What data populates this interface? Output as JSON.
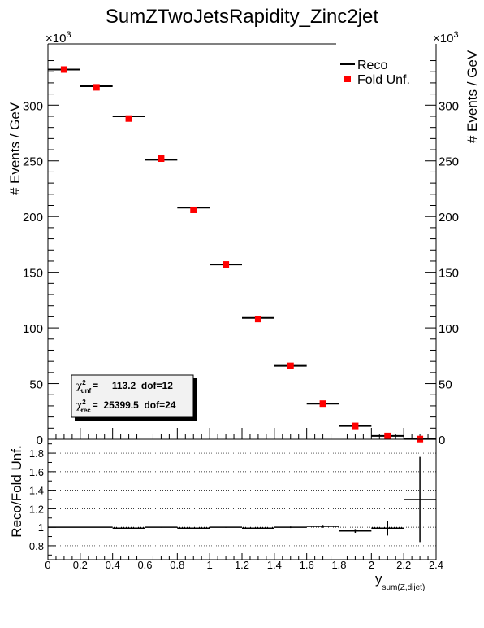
{
  "title": "SumZTwoJetsRapidity_Zinc2jet",
  "upper": {
    "ylabel": "# Events / GeV",
    "exponent_base": "×10",
    "exponent_power": "3",
    "ylim": [
      0,
      355
    ],
    "yticks": [
      0,
      50,
      100,
      150,
      200,
      250,
      300
    ],
    "ytick_labels": [
      "0",
      "50",
      "100",
      "150",
      "200",
      "250",
      "300"
    ]
  },
  "legend": {
    "entries": [
      {
        "label": "Reco",
        "marker": "line",
        "color": "#000000"
      },
      {
        "label": "Fold Unf.",
        "marker": "square",
        "color": "#ff0000"
      }
    ]
  },
  "chi2_box": {
    "unf_symbol": "χ",
    "unf_sup": "2",
    "unf_sub": "unf",
    "unf_text": "=     113.2  dof=12",
    "rec_symbol": "χ",
    "rec_sup": "2",
    "rec_sub": "rec",
    "rec_text": "=  25399.5  dof=24"
  },
  "lower": {
    "ylabel": "Reco/Fold Unf.",
    "ylim": [
      0.65,
      1.95
    ],
    "yticks": [
      0.8,
      1,
      1.2,
      1.4,
      1.6,
      1.8
    ],
    "ytick_labels": [
      "0.8",
      "1",
      "1.2",
      "1.4",
      "1.6",
      "1.8"
    ]
  },
  "xaxis": {
    "label": "y",
    "label_sub": "sum(Z,dijet)",
    "xlim": [
      0,
      2.4
    ],
    "xticks": [
      0,
      0.2,
      0.4,
      0.6,
      0.8,
      1,
      1.2,
      1.4,
      1.6,
      1.8,
      2,
      2.2,
      2.4
    ],
    "xtick_labels": [
      "0",
      "0.2",
      "0.4",
      "0.6",
      "0.8",
      "1",
      "1.2",
      "1.4",
      "1.6",
      "1.8",
      "2",
      "2.2",
      "2.4"
    ]
  },
  "chart_data": {
    "type": "scatter",
    "title": "SumZTwoJetsRapidity_Zinc2jet",
    "xlabel": "y sum(Z,dijet)",
    "ylabel": "# Events / GeV",
    "x_bin_edges": [
      0,
      0.2,
      0.4,
      0.6,
      0.8,
      1.0,
      1.2,
      1.4,
      1.6,
      1.8,
      2.0,
      2.2,
      2.4
    ],
    "series": [
      {
        "name": "Reco",
        "color": "#000000",
        "values": [
          332,
          317,
          290,
          251,
          208,
          157,
          109,
          66,
          32,
          12,
          3,
          0.3
        ]
      },
      {
        "name": "Fold Unf.",
        "color": "#ff0000",
        "values": [
          332,
          316,
          288,
          252,
          206,
          157,
          108,
          66,
          32,
          12,
          3,
          0.2
        ]
      }
    ],
    "ratio": {
      "ylabel": "Reco/Fold Unf.",
      "values": [
        1.0,
        1.0,
        0.99,
        1.0,
        0.99,
        1.0,
        0.99,
        1.0,
        1.01,
        0.96,
        0.99,
        1.3
      ],
      "errors": [
        0.003,
        0.003,
        0.003,
        0.004,
        0.005,
        0.005,
        0.006,
        0.008,
        0.015,
        0.02,
        0.08,
        0.46
      ]
    }
  }
}
